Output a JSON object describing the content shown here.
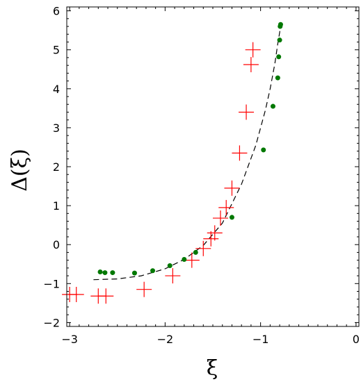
{
  "chart_data": {
    "type": "scatter",
    "xlabel": "ξ",
    "ylabel": "Δ(ξ)",
    "xlim": [
      -3.03,
      0.03
    ],
    "ylim": [
      -2.1,
      6.1
    ],
    "grid": false,
    "legend": "none",
    "x_ticks": [
      -3,
      -2,
      -1,
      0
    ],
    "x_tick_labels": [
      "−3",
      "−2",
      "−1",
      "0"
    ],
    "y_ticks": [
      -2,
      -1,
      0,
      1,
      2,
      3,
      4,
      5,
      6
    ],
    "y_tick_labels": [
      "−2",
      "−1",
      "0",
      "1",
      "2",
      "3",
      "4",
      "5",
      "6"
    ],
    "series": [
      {
        "marker": "cross",
        "color": "#ff0000",
        "x": [
          -3.0,
          -2.93,
          -2.7,
          -2.62,
          -2.22,
          -1.92,
          -1.72,
          -1.6,
          -1.52,
          -1.48,
          -1.42,
          -1.36,
          -1.3,
          -1.22,
          -1.15,
          -1.1,
          -1.08
        ],
        "y": [
          -1.28,
          -1.28,
          -1.32,
          -1.32,
          -1.15,
          -0.8,
          -0.4,
          -0.1,
          0.15,
          0.3,
          0.68,
          0.95,
          1.45,
          2.35,
          3.4,
          4.62,
          5.0
        ]
      },
      {
        "marker": "dot",
        "color": "#007800",
        "x": [
          -2.68,
          -2.63,
          -2.55,
          -2.32,
          -2.13,
          -1.95,
          -1.8,
          -1.68,
          -1.3,
          -0.97,
          -0.87,
          -0.82,
          -0.81,
          -0.8,
          -0.795,
          -0.79
        ],
        "y": [
          -0.7,
          -0.72,
          -0.72,
          -0.73,
          -0.67,
          -0.54,
          -0.38,
          -0.2,
          0.7,
          2.43,
          3.55,
          4.28,
          4.82,
          5.25,
          5.6,
          5.65
        ]
      },
      {
        "marker": "dashed-line",
        "color": "#000000",
        "x": [
          -2.75,
          -2.5,
          -2.25,
          -2.0,
          -1.8,
          -1.6,
          -1.4,
          -1.2,
          -1.05,
          -0.95,
          -0.9,
          -0.85,
          -0.82,
          -0.8,
          -0.79
        ],
        "y": [
          -0.9,
          -0.88,
          -0.8,
          -0.62,
          -0.38,
          -0.02,
          0.55,
          1.55,
          2.55,
          3.45,
          4.0,
          4.65,
          5.15,
          5.45,
          5.65
        ]
      }
    ]
  }
}
